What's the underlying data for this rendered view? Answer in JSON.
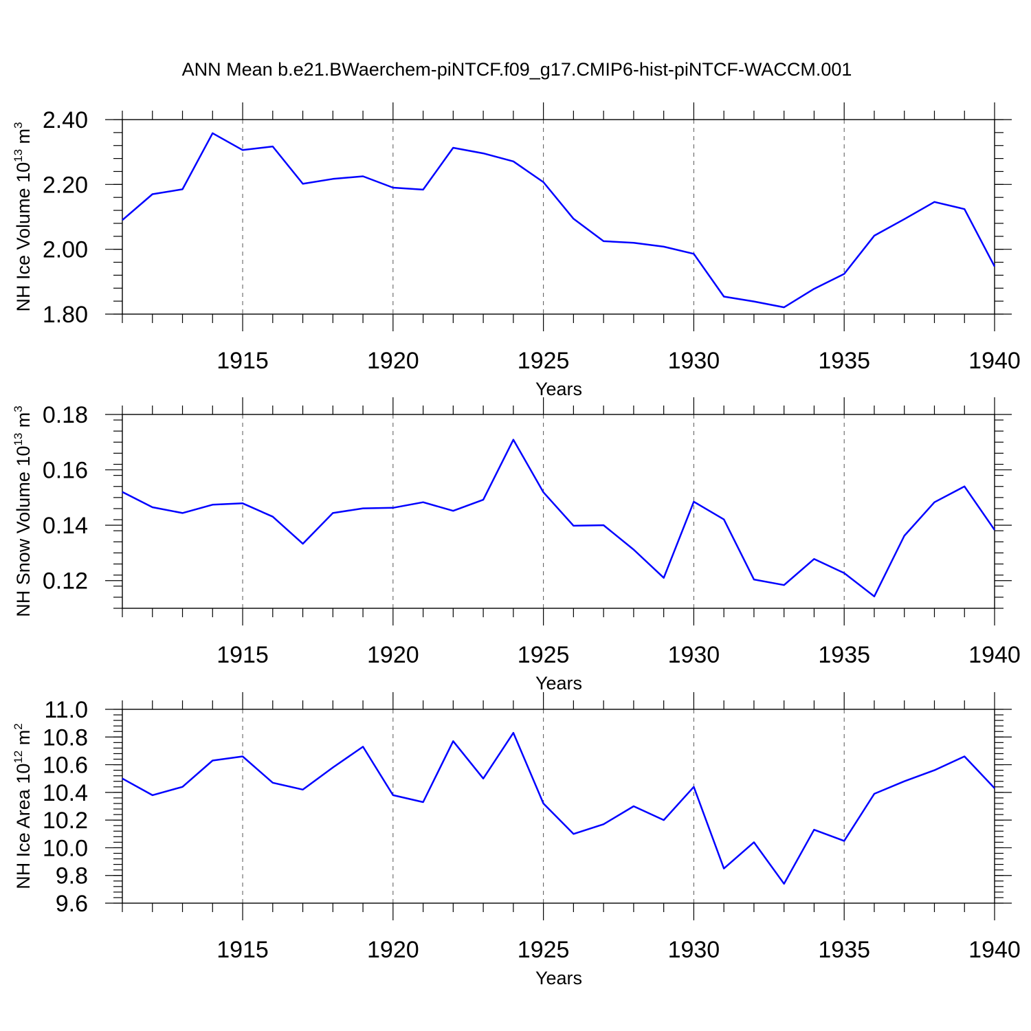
{
  "title": "ANN Mean b.e21.BWaerchem-piNTCF.f09_g17.CMIP6-hist-piNTCF-WACCM.001",
  "colors": {
    "series": "#0000ff",
    "axis": "#000000",
    "grid": "#555555"
  },
  "chart_data": [
    {
      "type": "line",
      "ylabel": {
        "text": "NH Ice Volume 10",
        "exp1": "13",
        "mid": " m",
        "exp2": "3"
      },
      "xlabel": "Years",
      "xlim": [
        1911,
        1940
      ],
      "ylim": [
        1.8,
        2.4
      ],
      "yticks": [
        1.8,
        2.0,
        2.2,
        2.4
      ],
      "ytick_labels": [
        "1.80",
        "2.00",
        "2.20",
        "2.40"
      ],
      "ytick_minor_step": 0.04,
      "xticks": [
        1915,
        1920,
        1925,
        1930,
        1935,
        1940
      ],
      "xtick_labels": [
        "1915",
        "1920",
        "1925",
        "1930",
        "1935",
        "1940"
      ],
      "grid": "x-dashed",
      "x": [
        1911,
        1912,
        1913,
        1914,
        1915,
        1916,
        1917,
        1918,
        1919,
        1920,
        1921,
        1922,
        1923,
        1924,
        1925,
        1926,
        1927,
        1928,
        1929,
        1930,
        1931,
        1932,
        1933,
        1934,
        1935,
        1936,
        1937,
        1938,
        1939,
        1940
      ],
      "values": [
        2.09,
        2.17,
        2.185,
        2.358,
        2.306,
        2.317,
        2.202,
        2.217,
        2.225,
        2.19,
        2.184,
        2.313,
        2.296,
        2.271,
        2.207,
        2.094,
        2.025,
        2.02,
        2.008,
        1.986,
        1.854,
        1.839,
        1.821,
        1.878,
        1.924,
        2.042,
        2.093,
        2.146,
        2.124,
        1.947
      ]
    },
    {
      "type": "line",
      "ylabel": {
        "text": "NH Snow Volume 10",
        "exp1": "13",
        "mid": " m",
        "exp2": "3"
      },
      "xlabel": "Years",
      "xlim": [
        1911,
        1940
      ],
      "ylim": [
        0.11,
        0.18
      ],
      "yticks": [
        0.12,
        0.14,
        0.16,
        0.18
      ],
      "ytick_labels": [
        "0.12",
        "0.14",
        "0.16",
        "0.18"
      ],
      "ytick_minor_step": 0.004,
      "xticks": [
        1915,
        1920,
        1925,
        1930,
        1935,
        1940
      ],
      "xtick_labels": [
        "1915",
        "1920",
        "1925",
        "1930",
        "1935",
        "1940"
      ],
      "grid": "x-dashed",
      "x": [
        1911,
        1912,
        1913,
        1914,
        1915,
        1916,
        1917,
        1918,
        1919,
        1920,
        1921,
        1922,
        1923,
        1924,
        1925,
        1926,
        1927,
        1928,
        1929,
        1930,
        1931,
        1932,
        1933,
        1934,
        1935,
        1936,
        1937,
        1938,
        1939,
        1940
      ],
      "values": [
        0.152,
        0.1465,
        0.1444,
        0.1474,
        0.1479,
        0.1431,
        0.1333,
        0.1444,
        0.1461,
        0.1463,
        0.1483,
        0.1452,
        0.1492,
        0.1709,
        0.1519,
        0.1398,
        0.14,
        0.1312,
        0.121,
        0.1485,
        0.1421,
        0.1204,
        0.1184,
        0.1278,
        0.1227,
        0.1143,
        0.1362,
        0.1483,
        0.154,
        0.1383
      ]
    },
    {
      "type": "line",
      "ylabel": {
        "text": "NH Ice Area 10",
        "exp1": "12",
        "mid": " m",
        "exp2": "2"
      },
      "xlabel": "Years",
      "xlim": [
        1911,
        1940
      ],
      "ylim": [
        9.6,
        11.0
      ],
      "yticks": [
        9.6,
        9.8,
        10.0,
        10.2,
        10.4,
        10.6,
        10.8,
        11.0
      ],
      "ytick_labels": [
        "9.6",
        "9.8",
        "10.0",
        "10.2",
        "10.4",
        "10.6",
        "10.8",
        "11.0"
      ],
      "ytick_minor_step": 0.04,
      "xticks": [
        1915,
        1920,
        1925,
        1930,
        1935,
        1940
      ],
      "xtick_labels": [
        "1915",
        "1920",
        "1925",
        "1930",
        "1935",
        "1940"
      ],
      "grid": "x-dashed",
      "x": [
        1911,
        1912,
        1913,
        1914,
        1915,
        1916,
        1917,
        1918,
        1919,
        1920,
        1921,
        1922,
        1923,
        1924,
        1925,
        1926,
        1927,
        1928,
        1929,
        1930,
        1931,
        1932,
        1933,
        1934,
        1935,
        1936,
        1937,
        1938,
        1939,
        1940
      ],
      "values": [
        10.5,
        10.38,
        10.44,
        10.63,
        10.66,
        10.47,
        10.42,
        10.58,
        10.73,
        10.38,
        10.33,
        10.77,
        10.5,
        10.83,
        10.32,
        10.1,
        10.17,
        10.3,
        10.2,
        10.44,
        9.85,
        10.04,
        9.74,
        10.13,
        10.05,
        10.39,
        10.48,
        10.56,
        10.66,
        10.43
      ]
    }
  ]
}
